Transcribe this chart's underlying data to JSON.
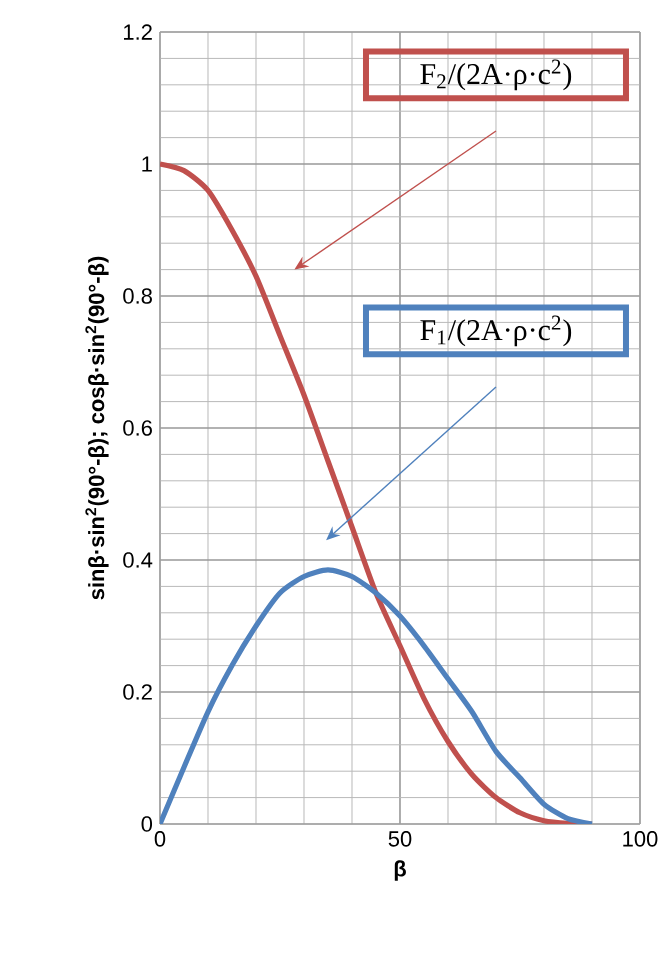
{
  "chart_data": {
    "type": "line",
    "xlabel": "β",
    "ylabel": "**sinβ·sin$^{2}$(90°-β); cosβ·sin$^{2}$(90°-β)**",
    "xlim": [
      0,
      100
    ],
    "xticks": [
      0,
      50,
      100
    ],
    "ylim": [
      0,
      1.2
    ],
    "yticks": [
      0,
      0.2,
      0.4,
      0.6,
      0.8,
      1,
      1.2
    ],
    "grid": true,
    "marker": "none",
    "line_style": "solid",
    "x": [
      0,
      5,
      10,
      15,
      20,
      25,
      30,
      35,
      40,
      45,
      50,
      55,
      60,
      65,
      70,
      75,
      80,
      85,
      90
    ],
    "series": [
      {
        "color": "#c0504d",
        "values": [
          1,
          0.99,
          0.96,
          0.9,
          0.83,
          0.74,
          0.65,
          0.55,
          0.45,
          0.35,
          0.27,
          0.19,
          0.125,
          0.075,
          0.04,
          0.017,
          0.005,
          0.001,
          0
        ]
      },
      {
        "color": "#4f81bd",
        "values": [
          0,
          0.086,
          0.17,
          0.24,
          0.3,
          0.35,
          0.375,
          0.385,
          0.375,
          0.35,
          0.315,
          0.27,
          0.22,
          0.17,
          0.11,
          0.07,
          0.03,
          0.008,
          0
        ]
      }
    ],
    "annotations": [
      "F$_{2}$/(2A·ρ·c$^{2}$)",
      "F$_{1}$/(2A·ρ·c$^{2}$)"
    ]
  }
}
